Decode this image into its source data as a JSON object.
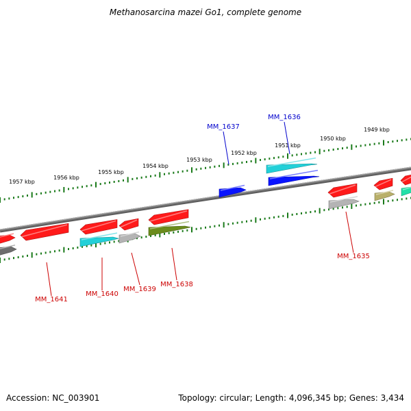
{
  "title": "Methanosarcina mazei Go1, complete genome",
  "footer": {
    "accession": "Accession: NC_003901",
    "summary": "Topology: circular; Length: 4,096,345 bp; Genes: 3,434"
  },
  "colors": {
    "backbone": "#7a7a7a",
    "tick": "#1a7a1a",
    "label_forward": "#0000cc",
    "label_reverse": "#cc0000",
    "red": "#ff1a1a",
    "blue": "#0a14ff",
    "cyan": "#22d0d8",
    "gray": "#b4b4b4",
    "olive": "#6b8c1c",
    "khaki": "#b9b06a",
    "dark_gray": "#6e6e6e",
    "teal_green": "#22e0a8"
  },
  "scale_labels": [
    "1957 kbp",
    "1956 kbp",
    "1955 kbp",
    "1954 kbp",
    "1953 kbp",
    "1952 kbp",
    "1951 kbp",
    "1950 kbp",
    "1949 kbp"
  ],
  "gene_labels": [
    {
      "text": "MM_1637",
      "strand": "forward"
    },
    {
      "text": "MM_1636",
      "strand": "forward"
    },
    {
      "text": "MM_1641",
      "strand": "reverse"
    },
    {
      "text": "MM_1640",
      "strand": "reverse"
    },
    {
      "text": "MM_1639",
      "strand": "reverse"
    },
    {
      "text": "MM_1638",
      "strand": "reverse"
    },
    {
      "text": "MM_1635",
      "strand": "reverse"
    }
  ],
  "features": [
    {
      "color": "red"
    },
    {
      "color": "red"
    },
    {
      "color": "red"
    },
    {
      "color": "red"
    },
    {
      "color": "red"
    },
    {
      "color": "red"
    },
    {
      "color": "red"
    },
    {
      "color": "red"
    },
    {
      "color": "blue"
    },
    {
      "color": "blue"
    },
    {
      "color": "cyan"
    },
    {
      "color": "cyan"
    },
    {
      "color": "gray"
    },
    {
      "color": "gray"
    },
    {
      "color": "olive"
    },
    {
      "color": "khaki"
    },
    {
      "color": "dark_gray"
    },
    {
      "color": "teal_green"
    }
  ]
}
